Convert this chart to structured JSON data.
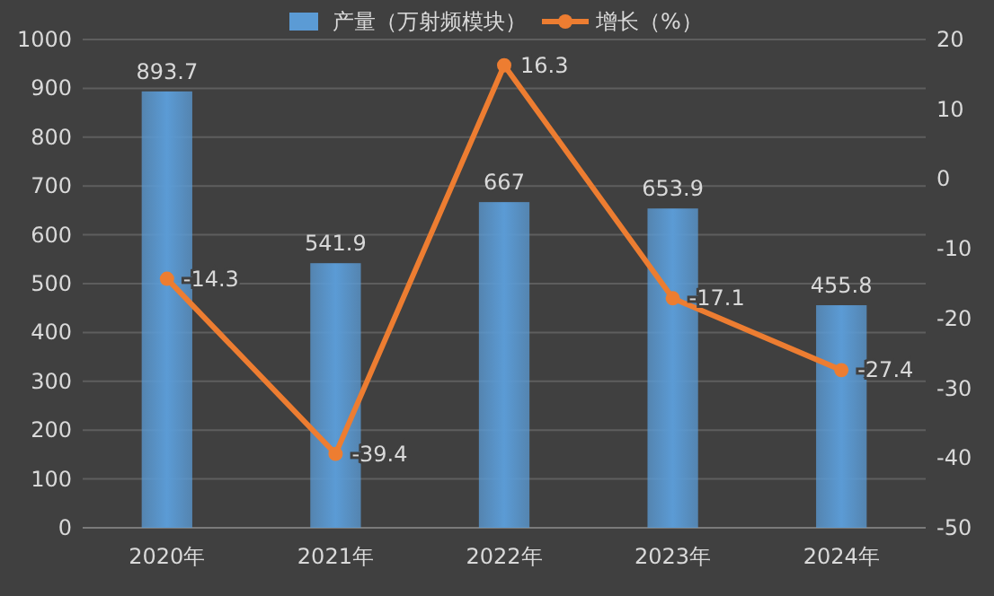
{
  "chart_data": {
    "type": "bar",
    "categories": [
      "2020年",
      "2021年",
      "2022年",
      "2023年",
      "2024年"
    ],
    "series": [
      {
        "name": "产量（万射频模块）",
        "color": "#5b9bd5",
        "values": [
          893.7,
          541.9,
          667,
          653.9,
          455.8
        ]
      },
      {
        "name": "增长（%）",
        "type": "line",
        "axis": "y2",
        "color": "#ed7d31",
        "values": [
          -14.3,
          -39.4,
          16.3,
          -17.1,
          -27.4
        ]
      }
    ],
    "ylim": [
      0,
      1000
    ],
    "yticks": [
      0,
      100,
      200,
      300,
      400,
      500,
      600,
      700,
      800,
      900,
      1000
    ],
    "y2lim": [
      -50,
      20
    ],
    "y2ticks": [
      -50,
      -40,
      -30,
      -20,
      -10,
      0,
      10,
      20
    ],
    "grid": "y",
    "legend": "top",
    "marker": "circle",
    "data_labels": true
  }
}
